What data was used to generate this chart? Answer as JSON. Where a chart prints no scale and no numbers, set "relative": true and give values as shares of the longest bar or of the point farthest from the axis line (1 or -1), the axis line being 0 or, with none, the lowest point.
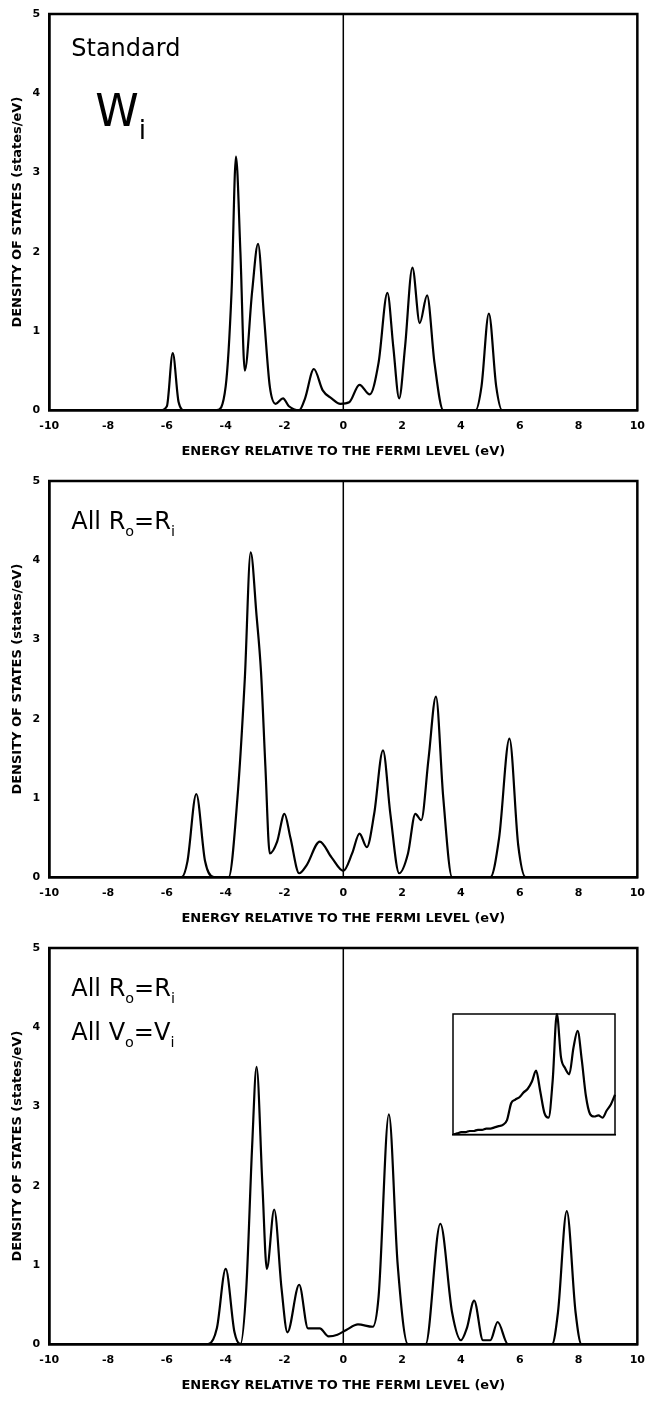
{
  "chart_data": [
    {
      "type": "line",
      "annotations": [
        "Standard",
        "W$_{i}$"
      ],
      "xlabel": "ENERGY RELATIVE TO THE FERMI LEVEL (eV)",
      "ylabel": "DENSITY OF STATES (states/eV)",
      "xlim": [
        -10,
        10
      ],
      "ylim": [
        0,
        5
      ],
      "xticks": [
        -10,
        -8,
        -6,
        -4,
        -2,
        0,
        2,
        4,
        6,
        8,
        10
      ],
      "yticks": [
        0,
        1,
        2,
        3,
        4,
        5
      ],
      "grid": false,
      "legend": false,
      "marker": "none",
      "line_style": "solid",
      "ref_lines": [
        {
          "axis": "x",
          "value": 0,
          "color": "#000000"
        }
      ],
      "series": [
        {
          "color": "#000000",
          "x": [
            -10,
            -6.2,
            -6.0,
            -5.8,
            -5.6,
            -5.4,
            -4.3,
            -4.0,
            -3.8,
            -3.65,
            -3.5,
            -3.35,
            -3.1,
            -2.9,
            -2.7,
            -2.5,
            -2.3,
            -2.05,
            -1.85,
            -1.5,
            -1.3,
            -1.0,
            -0.7,
            -0.4,
            -0.1,
            0.2,
            0.55,
            0.9,
            1.2,
            1.5,
            1.7,
            1.9,
            2.1,
            2.35,
            2.6,
            2.85,
            3.1,
            3.4,
            4.5,
            4.7,
            4.95,
            5.2,
            5.4,
            10
          ],
          "values": [
            0,
            0,
            0.05,
            0.72,
            0.1,
            0,
            0,
            0.3,
            1.5,
            3.2,
            2.0,
            0.5,
            1.5,
            2.1,
            1.2,
            0.3,
            0.08,
            0.15,
            0.05,
            0,
            0.15,
            0.52,
            0.25,
            0.15,
            0.08,
            0.1,
            0.32,
            0.2,
            0.6,
            1.48,
            0.8,
            0.15,
            0.8,
            1.8,
            1.1,
            1.45,
            0.6,
            0,
            0,
            0.3,
            1.22,
            0.3,
            0,
            0
          ]
        }
      ]
    },
    {
      "type": "line",
      "annotations": [
        "All R$_{o}$=R$_{i}$"
      ],
      "xlabel": "ENERGY RELATIVE TO THE FERMI LEVEL (eV)",
      "ylabel": "DENSITY OF STATES (states/eV)",
      "xlim": [
        -10,
        10
      ],
      "ylim": [
        0,
        5
      ],
      "xticks": [
        -10,
        -8,
        -6,
        -4,
        -2,
        0,
        2,
        4,
        6,
        8,
        10
      ],
      "yticks": [
        0,
        1,
        2,
        3,
        4,
        5
      ],
      "grid": false,
      "legend": false,
      "marker": "none",
      "line_style": "solid",
      "ref_lines": [
        {
          "axis": "x",
          "value": 0,
          "color": "#000000"
        }
      ],
      "series": [
        {
          "color": "#000000",
          "x": [
            -10,
            -5.5,
            -5.3,
            -5.0,
            -4.7,
            -4.4,
            -3.9,
            -3.6,
            -3.35,
            -3.15,
            -2.95,
            -2.8,
            -2.65,
            -2.5,
            -2.25,
            -2.0,
            -1.8,
            -1.5,
            -1.25,
            -0.8,
            -0.4,
            0,
            0.3,
            0.55,
            0.8,
            1.05,
            1.35,
            1.6,
            1.9,
            2.2,
            2.45,
            2.65,
            2.9,
            3.15,
            3.4,
            3.7,
            5.0,
            5.3,
            5.65,
            5.95,
            6.2,
            10
          ],
          "values": [
            0,
            0,
            0.2,
            1.05,
            0.2,
            0,
            0,
            1.0,
            2.5,
            4.1,
            3.3,
            2.6,
            1.4,
            0.3,
            0.45,
            0.8,
            0.5,
            0.05,
            0.15,
            0.45,
            0.25,
            0.08,
            0.3,
            0.55,
            0.38,
            0.8,
            1.6,
            0.8,
            0.05,
            0.3,
            0.8,
            0.72,
            1.5,
            2.28,
            1.0,
            0,
            0,
            0.5,
            1.75,
            0.4,
            0,
            0
          ]
        }
      ]
    },
    {
      "type": "line",
      "annotations": [
        "All R$_{o}$=R$_{i}$",
        "All V$_{o}$=V$_{i}$"
      ],
      "xlabel": "ENERGY RELATIVE TO THE FERMI LEVEL (eV)",
      "ylabel": "DENSITY OF STATES (states/eV)",
      "xlim": [
        -10,
        10
      ],
      "ylim": [
        0,
        5
      ],
      "xticks": [
        -10,
        -8,
        -6,
        -4,
        -2,
        0,
        2,
        4,
        6,
        8,
        10
      ],
      "yticks": [
        0,
        1,
        2,
        3,
        4,
        5
      ],
      "grid": false,
      "legend": false,
      "marker": "none",
      "line_style": "solid",
      "ref_lines": [
        {
          "axis": "x",
          "value": 0,
          "color": "#000000"
        }
      ],
      "series": [
        {
          "color": "#000000",
          "x": [
            -10,
            -4.6,
            -4.3,
            -4.0,
            -3.7,
            -3.5,
            -3.3,
            -3.1,
            -2.95,
            -2.75,
            -2.6,
            -2.35,
            -2.1,
            -1.9,
            -1.5,
            -1.2,
            -0.8,
            -0.5,
            -0.2,
            0.1,
            0.5,
            1.0,
            1.2,
            1.55,
            1.85,
            2.2,
            2.8,
            3.3,
            3.7,
            4.0,
            4.2,
            4.45,
            4.75,
            5.0,
            5.25,
            5.6,
            7.1,
            7.3,
            7.6,
            7.9,
            8.1,
            10
          ],
          "values": [
            0,
            0,
            0.2,
            0.95,
            0.15,
            0,
            0.7,
            2.5,
            3.5,
            2.0,
            0.95,
            1.7,
            0.7,
            0.15,
            0.75,
            0.2,
            0.2,
            0.1,
            0.12,
            0.18,
            0.25,
            0.22,
            0.6,
            2.9,
            1.0,
            0,
            0,
            1.52,
            0.4,
            0.05,
            0.2,
            0.55,
            0.05,
            0.05,
            0.28,
            0,
            0,
            0.4,
            1.68,
            0.4,
            0,
            0
          ]
        }
      ]
    },
    {
      "type": "line",
      "relative": true,
      "legend": false,
      "marker": "none",
      "line_style": "solid",
      "categories": [
        null,
        null,
        null,
        null,
        null,
        null,
        null,
        null,
        null,
        null,
        null,
        null,
        null,
        null,
        null,
        null,
        null,
        null,
        null,
        null,
        null,
        null,
        null,
        null,
        null,
        null,
        null,
        null,
        null,
        null,
        null,
        null,
        null,
        null,
        null,
        null,
        null,
        null,
        null,
        null
      ],
      "series": [
        {
          "color": "#000000",
          "values": [
            0,
            0.01,
            0.02,
            0.02,
            0.03,
            0.03,
            0.04,
            0.04,
            0.05,
            0.05,
            0.06,
            0.07,
            0.08,
            0.12,
            0.26,
            0.29,
            0.31,
            0.35,
            0.38,
            0.44,
            0.53,
            0.36,
            0.18,
            0.14,
            0.45,
            1.0,
            0.64,
            0.55,
            0.5,
            0.72,
            0.86,
            0.62,
            0.32,
            0.17,
            0.15,
            0.16,
            0.14,
            0.2,
            0.25,
            0.33
          ]
        }
      ]
    }
  ]
}
